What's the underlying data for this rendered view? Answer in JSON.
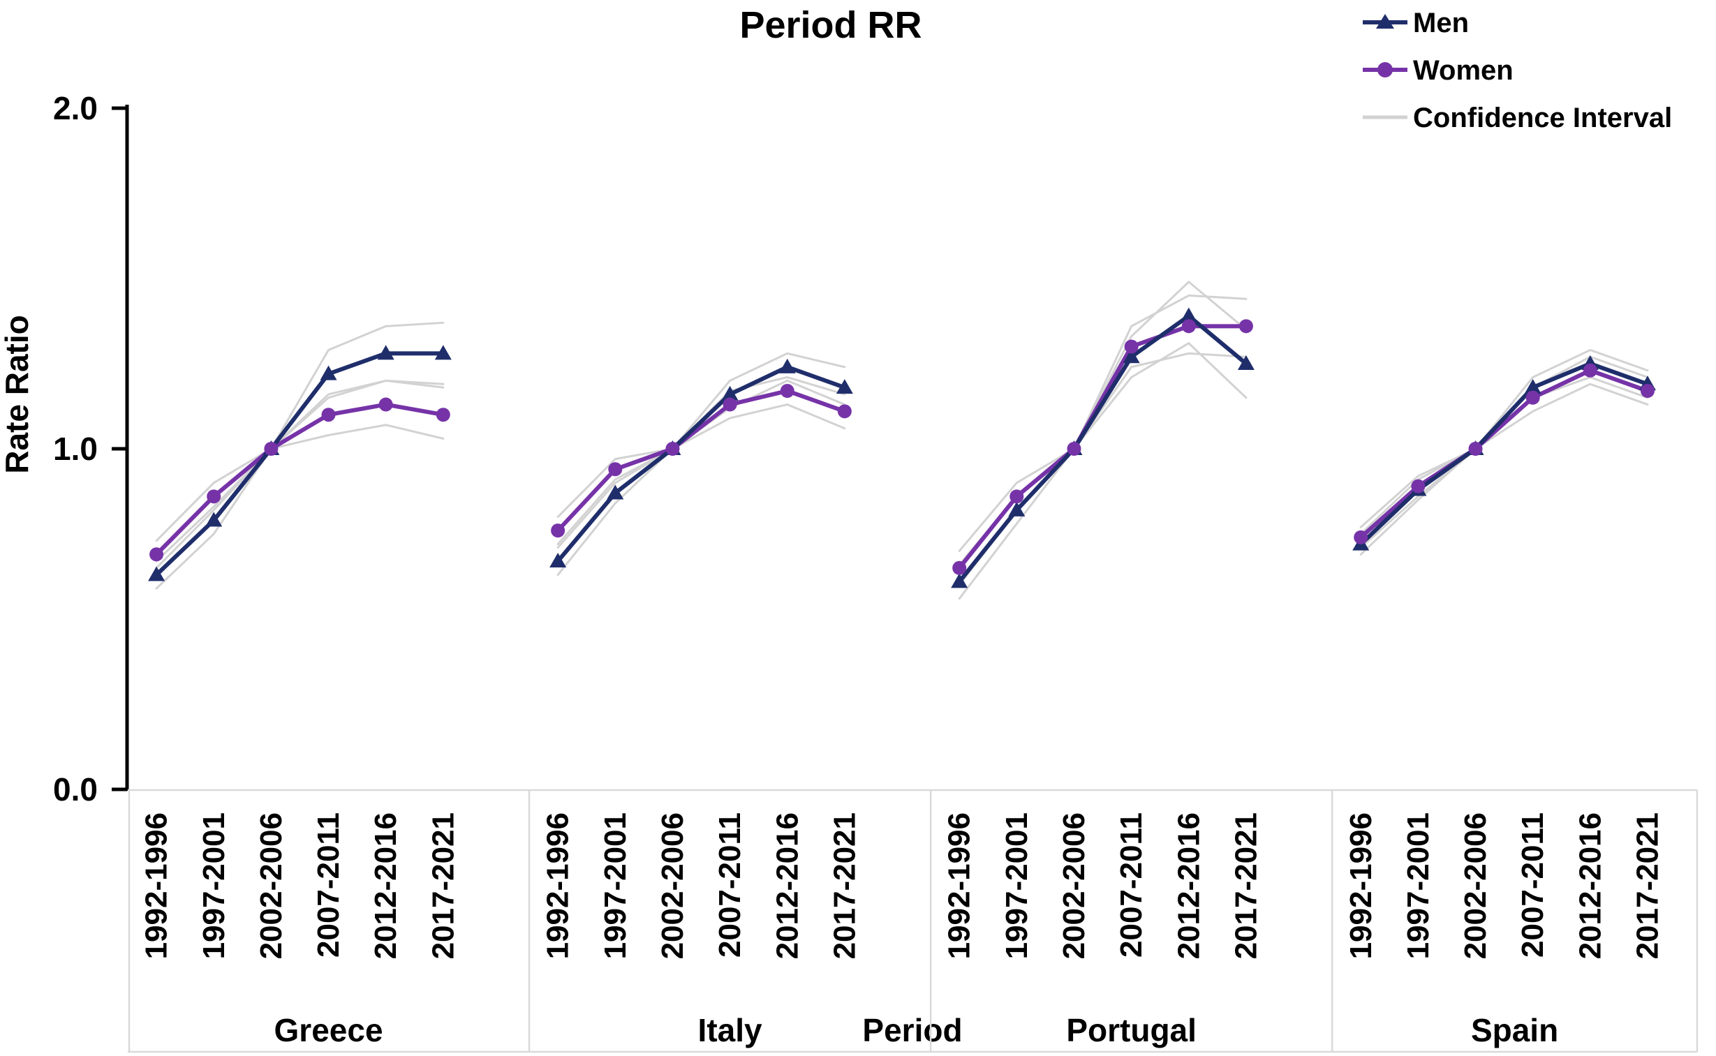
{
  "title": "Period RR",
  "legend": {
    "items": [
      {
        "label": "Men",
        "series": "men",
        "marker": "triangle-icon"
      },
      {
        "label": "Women",
        "series": "women",
        "marker": "circle-icon"
      },
      {
        "label": "Confidence Interval",
        "series": "ci",
        "marker": "line-icon"
      }
    ]
  },
  "colors": {
    "men": "#1F2E6B",
    "women": "#7633A8",
    "ci": "#D2D2D2",
    "panel_line": "#D9D9D9",
    "axis": "#000000"
  },
  "chart_data": {
    "type": "line",
    "title": "Period RR",
    "xlabel": "Period",
    "ylabel": "Rate Ratio",
    "ylim": [
      0.0,
      2.0
    ],
    "grid": false,
    "legend_position": "top-right",
    "legend": [
      "Men",
      "Women",
      "Confidence Interval"
    ],
    "y_ticks": [
      {
        "label": "2.0",
        "value": 2.0
      },
      {
        "label": "1.0",
        "value": 1.0
      },
      {
        "label": "0.0",
        "value": 0.0
      }
    ],
    "categories": [
      "1992-1996",
      "1997-2001",
      "2002-2006",
      "2007-2011",
      "2012-2016",
      "2017-2021"
    ],
    "panels": [
      {
        "country": "Greece",
        "men": [
          0.63,
          0.79,
          1.0,
          1.22,
          1.28,
          1.28
        ],
        "women": [
          0.69,
          0.86,
          1.0,
          1.1,
          1.13,
          1.1
        ],
        "men_ci_upper": [
          0.67,
          0.83,
          1.0,
          1.29,
          1.36,
          1.37
        ],
        "men_ci_lower": [
          0.59,
          0.75,
          1.0,
          1.15,
          1.2,
          1.19
        ],
        "women_ci_upper": [
          0.73,
          0.9,
          1.0,
          1.16,
          1.2,
          1.18
        ],
        "women_ci_lower": [
          0.65,
          0.82,
          1.0,
          1.04,
          1.07,
          1.03
        ]
      },
      {
        "country": "Italy",
        "men": [
          0.67,
          0.87,
          1.0,
          1.16,
          1.24,
          1.18
        ],
        "women": [
          0.76,
          0.94,
          1.0,
          1.13,
          1.17,
          1.11
        ],
        "men_ci_upper": [
          0.71,
          0.9,
          1.0,
          1.2,
          1.28,
          1.24
        ],
        "men_ci_lower": [
          0.63,
          0.84,
          1.0,
          1.12,
          1.2,
          1.13
        ],
        "women_ci_upper": [
          0.8,
          0.97,
          1.0,
          1.17,
          1.21,
          1.16
        ],
        "women_ci_lower": [
          0.72,
          0.91,
          1.0,
          1.09,
          1.13,
          1.06
        ]
      },
      {
        "country": "Portugal",
        "men": [
          0.61,
          0.82,
          1.0,
          1.27,
          1.39,
          1.25
        ],
        "women": [
          0.65,
          0.86,
          1.0,
          1.3,
          1.36,
          1.36
        ],
        "men_ci_upper": [
          0.66,
          0.86,
          1.0,
          1.33,
          1.49,
          1.35
        ],
        "men_ci_lower": [
          0.56,
          0.78,
          1.0,
          1.21,
          1.31,
          1.15
        ],
        "women_ci_upper": [
          0.7,
          0.9,
          1.0,
          1.36,
          1.45,
          1.44
        ],
        "women_ci_lower": [
          0.6,
          0.82,
          1.0,
          1.24,
          1.28,
          1.27
        ]
      },
      {
        "country": "Spain",
        "men": [
          0.72,
          0.88,
          1.0,
          1.18,
          1.25,
          1.19
        ],
        "women": [
          0.74,
          0.89,
          1.0,
          1.15,
          1.23,
          1.17
        ],
        "men_ci_upper": [
          0.75,
          0.91,
          1.0,
          1.21,
          1.29,
          1.23
        ],
        "men_ci_lower": [
          0.69,
          0.85,
          1.0,
          1.15,
          1.21,
          1.15
        ],
        "women_ci_upper": [
          0.77,
          0.92,
          1.0,
          1.18,
          1.27,
          1.21
        ],
        "women_ci_lower": [
          0.71,
          0.86,
          1.0,
          1.11,
          1.19,
          1.13
        ]
      }
    ]
  }
}
